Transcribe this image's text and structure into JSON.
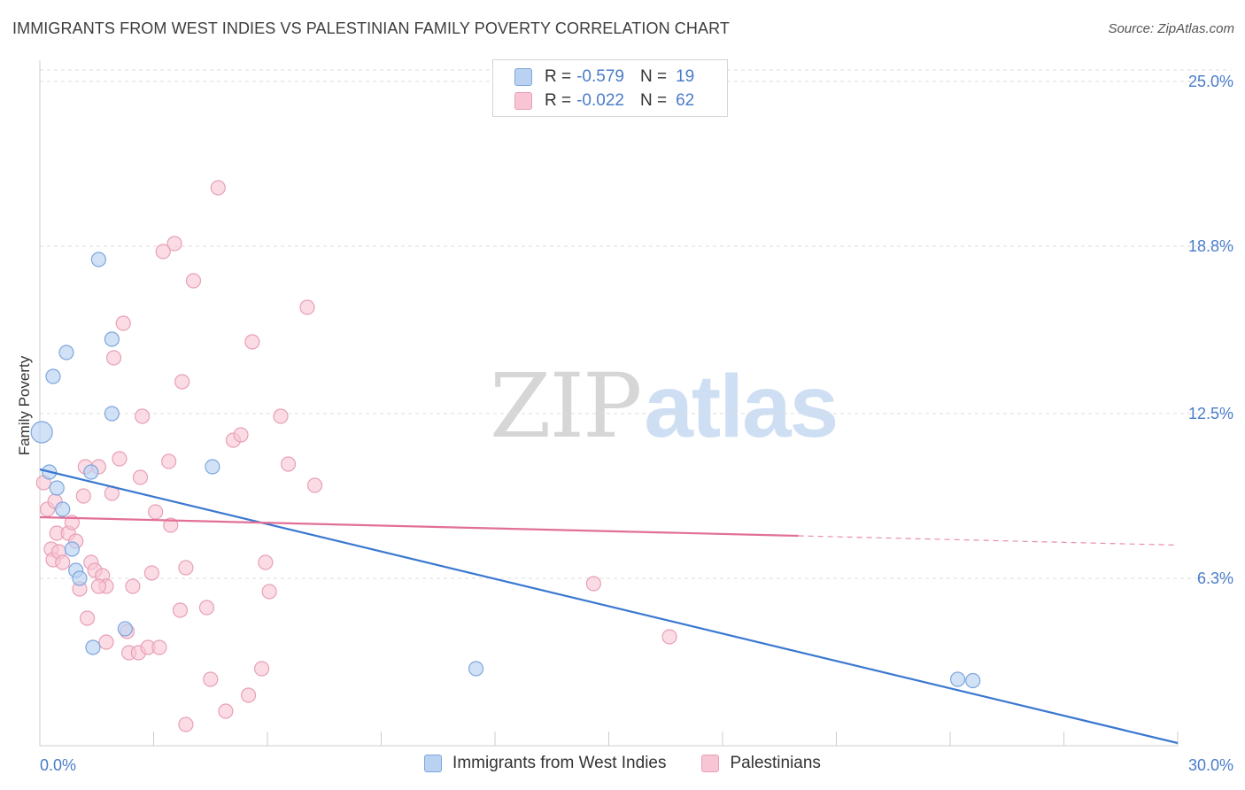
{
  "title": "IMMIGRANTS FROM WEST INDIES VS PALESTINIAN FAMILY POVERTY CORRELATION CHART",
  "source": "Source: ZipAtlas.com",
  "watermark": {
    "zip": "ZIP",
    "atlas": "atlas"
  },
  "colors": {
    "blue_fill": "#b9d2f2",
    "blue_stroke": "#7ea6dc",
    "blue_line": "#3a78d0",
    "pink_fill": "#f8c5d4",
    "pink_stroke": "#e8a0b6",
    "pink_line": "#e26f97",
    "tick_text": "#4a7cc9",
    "grid": "#dddddd"
  },
  "legend": {
    "r_label": "R =",
    "n_label": "N =",
    "series": [
      {
        "r": "-0.579",
        "n": "19"
      },
      {
        "r": "-0.022",
        "n": "62"
      }
    ]
  },
  "chart_data": {
    "type": "scatter",
    "title": "IMMIGRANTS FROM WEST INDIES VS PALESTINIAN FAMILY POVERTY CORRELATION CHART",
    "xlabel": "",
    "ylabel": "Family Poverty",
    "xlim": [
      0,
      30
    ],
    "ylim": [
      0,
      25.8
    ],
    "x_tick_labels": [
      "0.0%",
      "30.0%"
    ],
    "y_ticks": [
      6.3,
      12.5,
      18.8,
      25.0
    ],
    "y_tick_labels": [
      "6.3%",
      "12.5%",
      "18.8%",
      "25.0%"
    ],
    "grid": true,
    "legend_position": "top-center",
    "series": [
      {
        "name": "Immigrants from West Indies",
        "color": "#b9d2f2",
        "points": [
          [
            0.05,
            11.8
          ],
          [
            0.25,
            10.3
          ],
          [
            0.45,
            9.7
          ],
          [
            0.6,
            8.9
          ],
          [
            0.85,
            7.4
          ],
          [
            0.95,
            6.6
          ],
          [
            1.05,
            6.3
          ],
          [
            0.35,
            13.9
          ],
          [
            0.7,
            14.8
          ],
          [
            1.55,
            18.3
          ],
          [
            1.9,
            15.3
          ],
          [
            1.9,
            12.5
          ],
          [
            1.35,
            10.3
          ],
          [
            1.4,
            3.7
          ],
          [
            2.25,
            4.4
          ],
          [
            4.55,
            10.5
          ],
          [
            11.5,
            2.9
          ],
          [
            24.2,
            2.5
          ],
          [
            24.6,
            2.45
          ]
        ],
        "trend": {
          "x": [
            0,
            30
          ],
          "y": [
            10.4,
            0.1
          ]
        }
      },
      {
        "name": "Palestinians",
        "color": "#f8c5d4",
        "points": [
          [
            0.1,
            9.9
          ],
          [
            0.2,
            8.9
          ],
          [
            0.3,
            7.4
          ],
          [
            0.35,
            7.0
          ],
          [
            0.45,
            8.0
          ],
          [
            0.5,
            7.3
          ],
          [
            0.6,
            6.9
          ],
          [
            0.75,
            8.0
          ],
          [
            0.85,
            8.4
          ],
          [
            0.95,
            7.7
          ],
          [
            1.05,
            5.9
          ],
          [
            1.15,
            9.4
          ],
          [
            1.25,
            4.8
          ],
          [
            1.35,
            6.9
          ],
          [
            1.45,
            6.6
          ],
          [
            1.55,
            10.5
          ],
          [
            1.65,
            6.4
          ],
          [
            1.75,
            6.0
          ],
          [
            1.75,
            3.9
          ],
          [
            1.9,
            9.5
          ],
          [
            1.95,
            14.6
          ],
          [
            2.1,
            10.8
          ],
          [
            2.2,
            15.9
          ],
          [
            2.3,
            4.3
          ],
          [
            2.35,
            3.5
          ],
          [
            2.45,
            6.0
          ],
          [
            2.6,
            3.5
          ],
          [
            2.65,
            10.1
          ],
          [
            2.7,
            12.4
          ],
          [
            2.85,
            3.7
          ],
          [
            2.95,
            6.5
          ],
          [
            3.05,
            8.8
          ],
          [
            3.15,
            3.7
          ],
          [
            3.25,
            18.6
          ],
          [
            3.4,
            10.7
          ],
          [
            3.45,
            8.3
          ],
          [
            3.55,
            18.9
          ],
          [
            3.7,
            5.1
          ],
          [
            3.75,
            13.7
          ],
          [
            3.85,
            0.8
          ],
          [
            3.85,
            6.7
          ],
          [
            4.05,
            17.5
          ],
          [
            4.4,
            5.2
          ],
          [
            4.5,
            2.5
          ],
          [
            4.7,
            21.0
          ],
          [
            4.9,
            1.3
          ],
          [
            5.1,
            11.5
          ],
          [
            5.3,
            11.7
          ],
          [
            5.5,
            1.9
          ],
          [
            5.6,
            15.2
          ],
          [
            5.85,
            2.9
          ],
          [
            5.95,
            6.9
          ],
          [
            6.05,
            5.8
          ],
          [
            6.35,
            12.4
          ],
          [
            6.55,
            10.6
          ],
          [
            7.05,
            16.5
          ],
          [
            7.25,
            9.8
          ],
          [
            14.6,
            6.1
          ],
          [
            16.6,
            4.1
          ],
          [
            1.55,
            6.0
          ],
          [
            0.4,
            9.2
          ],
          [
            1.2,
            10.5
          ]
        ],
        "trend": {
          "x": [
            0,
            20
          ],
          "y": [
            8.6,
            7.9
          ]
        },
        "trend_extension": {
          "x": [
            20,
            30
          ],
          "y": [
            7.9,
            7.55
          ]
        }
      }
    ]
  }
}
